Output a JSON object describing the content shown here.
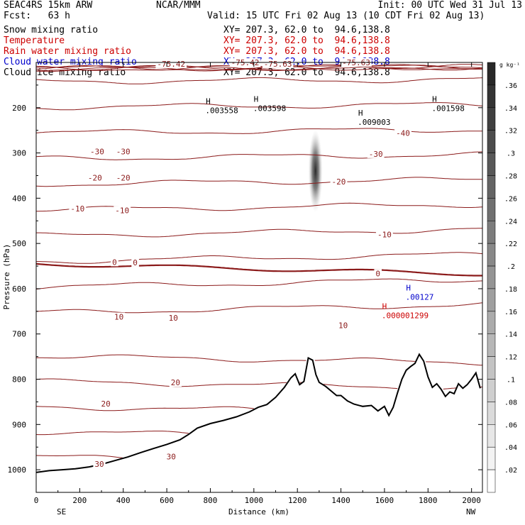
{
  "header": {
    "model": "SEAC4RS 15km ARW",
    "center": "NCAR/MMM",
    "init": "Init: 00 UTC Wed 31 Jul 13",
    "fcst": "Fcst:   63 h",
    "valid": "Valid: 15 UTC Fri 02 Aug 13 (10 CDT Fri 02 Aug 13)"
  },
  "fields": [
    {
      "name": "Snow mixing ratio",
      "xy": "XY= 207.3, 62.0 to  94.6,138.8",
      "color": "#000000"
    },
    {
      "name": "Temperature",
      "xy": "XY= 207.3, 62.0 to  94.6,138.8",
      "color": "#cc0000"
    },
    {
      "name": "Rain water mixing ratio",
      "xy": "XY= 207.3, 62.0 to  94.6,138.8",
      "color": "#cc0000"
    },
    {
      "name": "Cloud water mixing ratio",
      "xy": "XY= 207.3, 62.0 to  94.6,138.8",
      "color": "#0000cc"
    },
    {
      "name": "Cloud ice mixing ratio",
      "xy": "XY= 207.3, 62.0 to  94.6,138.8",
      "color": "#000000"
    }
  ],
  "chart_data": {
    "type": "cross-section",
    "xlabel": "Distance (km)",
    "ylabel": "Pressure (hPa)",
    "xlim": [
      0,
      2050
    ],
    "ylim": [
      1050,
      100
    ],
    "x_ticks": [
      0,
      200,
      400,
      600,
      800,
      1000,
      1200,
      1400,
      1600,
      1800,
      2000
    ],
    "y_ticks": [
      200,
      300,
      400,
      500,
      600,
      700,
      800,
      900,
      1000
    ],
    "end_labels": {
      "left": "SE",
      "right": "NW"
    },
    "colorbar": {
      "unit": "g kg⁻¹",
      "ticks": [
        ".36",
        ".34",
        ".32",
        ".3",
        ".28",
        ".26",
        ".24",
        ".22",
        ".2",
        ".18",
        ".16",
        ".14",
        ".12",
        ".1",
        ".08",
        ".06",
        ".04",
        ".02"
      ]
    },
    "temperature_isotherms_C": [
      -75,
      -70,
      -65,
      -60,
      -55,
      -50,
      -45,
      -40,
      -35,
      -30,
      -25,
      -20,
      -15,
      -10,
      -5,
      0,
      5,
      10,
      15,
      20,
      25,
      30
    ],
    "temperature_labels": [
      {
        "text": "-75.42",
        "x": 620,
        "p": 103
      },
      {
        "text": "-75.42",
        "x": 960,
        "p": 100
      },
      {
        "text": "-75.63",
        "x": 1110,
        "p": 103
      },
      {
        "text": "-75.63",
        "x": 1470,
        "p": 100
      },
      {
        "text": "-40",
        "x": 1685,
        "p": 256
      },
      {
        "text": "-30",
        "x": 280,
        "p": 297
      },
      {
        "text": "-30",
        "x": 400,
        "p": 297
      },
      {
        "text": "-30",
        "x": 1560,
        "p": 302
      },
      {
        "text": "-20",
        "x": 270,
        "p": 355
      },
      {
        "text": "-20",
        "x": 400,
        "p": 355
      },
      {
        "text": "-20",
        "x": 1390,
        "p": 363
      },
      {
        "text": "-10",
        "x": 190,
        "p": 423
      },
      {
        "text": "-10",
        "x": 395,
        "p": 427
      },
      {
        "text": "-10",
        "x": 1600,
        "p": 480
      },
      {
        "text": "0",
        "x": 360,
        "p": 541
      },
      {
        "text": "0",
        "x": 455,
        "p": 542
      },
      {
        "text": "0",
        "x": 1570,
        "p": 566
      },
      {
        "text": "10",
        "x": 380,
        "p": 662
      },
      {
        "text": "10",
        "x": 630,
        "p": 664
      },
      {
        "text": "10",
        "x": 1410,
        "p": 681
      },
      {
        "text": "20",
        "x": 640,
        "p": 807
      },
      {
        "text": "20",
        "x": 320,
        "p": 854
      },
      {
        "text": "30",
        "x": 620,
        "p": 971
      },
      {
        "text": "30",
        "x": 290,
        "p": 987
      }
    ],
    "extrema_labels": [
      {
        "mark": "H",
        "value": ".003558",
        "x": 790,
        "p": 198,
        "color": "#000000"
      },
      {
        "mark": "H",
        "value": ".003598",
        "x": 1010,
        "p": 193,
        "color": "#000000"
      },
      {
        "mark": "H",
        "value": ".009003",
        "x": 1490,
        "p": 224,
        "color": "#000000"
      },
      {
        "mark": "H",
        "value": ".001598",
        "x": 1830,
        "p": 193,
        "color": "#000000"
      },
      {
        "mark": "H",
        "value": ".00127",
        "x": 1710,
        "p": 610,
        "color": "#0000cc"
      },
      {
        "mark": "H",
        "value": ".000001299",
        "x": 1600,
        "p": 651,
        "color": "#cc0000"
      }
    ],
    "terrain_surface_hPa": {
      "x": [
        0,
        60,
        120,
        180,
        240,
        300,
        360,
        420,
        480,
        540,
        600,
        660,
        700,
        740,
        800,
        860,
        920,
        980,
        1020,
        1060,
        1100,
        1140,
        1170,
        1190,
        1210,
        1230,
        1250,
        1270,
        1285,
        1300,
        1330,
        1360,
        1380,
        1400,
        1430,
        1460,
        1500,
        1540,
        1570,
        1600,
        1620,
        1640,
        1660,
        1680,
        1700,
        1720,
        1740,
        1760,
        1780,
        1800,
        1820,
        1840,
        1860,
        1880,
        1900,
        1920,
        1940,
        1960,
        1980,
        2000,
        2020,
        2040
      ],
      "p": [
        1006,
        1002,
        1000,
        998,
        994,
        988,
        980,
        972,
        962,
        953,
        944,
        934,
        922,
        908,
        898,
        891,
        883,
        872,
        862,
        856,
        840,
        818,
        797,
        788,
        812,
        805,
        753,
        758,
        790,
        807,
        816,
        828,
        836,
        836,
        848,
        855,
        860,
        858,
        870,
        860,
        880,
        862,
        830,
        800,
        780,
        772,
        765,
        745,
        760,
        795,
        818,
        810,
        822,
        838,
        828,
        832,
        810,
        820,
        812,
        800,
        786,
        820
      ]
    }
  }
}
